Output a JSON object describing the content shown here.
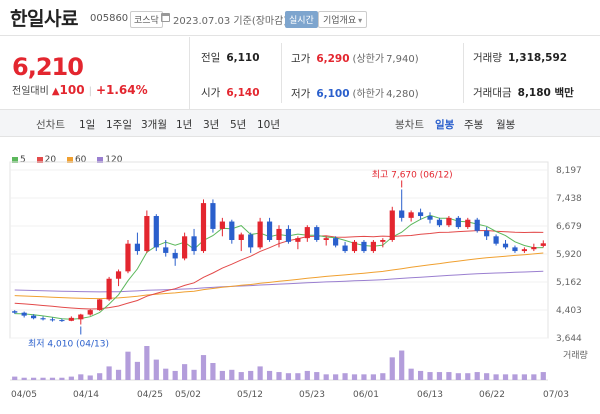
{
  "header": {
    "name": "한일사료",
    "code": "005860",
    "market": "코스닥",
    "date": "2023.07.03 기준(장마감)",
    "live_label": "실시간",
    "overview_label": "기업개요"
  },
  "price": {
    "current": "6,210",
    "change_label": "전일대비",
    "change": "100",
    "change_pct": "+1.64%"
  },
  "stats": {
    "prev_label": "전일",
    "prev": "6,110",
    "high_label": "고가",
    "high": "6,290",
    "upper_label": "(상한가",
    "upper": "7,940)",
    "volume_label": "거래량",
    "volume": "1,318,592",
    "open_label": "시가",
    "open": "6,140",
    "low_label": "저가",
    "low": "6,100",
    "lower_label": "(하한가",
    "lower": "4,280)",
    "amount_label": "거래대금",
    "amount": "8,180 백만"
  },
  "tabs": {
    "line_chart": "선차트",
    "periods": [
      "1일",
      "1주일",
      "3개월",
      "1년",
      "3년",
      "5년",
      "10년"
    ],
    "candle_chart": "봉차트",
    "candle_periods": [
      "일봉",
      "주봉",
      "월봉"
    ]
  },
  "colors": {
    "up": "#e3262f",
    "down": "#2a5fcc",
    "ma5": "#5cb85c",
    "ma20": "#e34a4a",
    "ma60": "#f0a030",
    "ma120": "#9a7fd0",
    "volume": "#b39ddb"
  },
  "chart_data": {
    "type": "candlestick",
    "legend": [
      "5",
      "20",
      "60",
      "120"
    ],
    "y_ticks": [
      "8,197",
      "7,438",
      "6,679",
      "5,920",
      "5,162",
      "4,403",
      "3,644"
    ],
    "ylim": [
      3644,
      8197
    ],
    "x_ticks": [
      "04/05",
      "04/14",
      "04/25",
      "05/02",
      "05/12",
      "05/23",
      "06/01",
      "06/13",
      "06/22",
      "07/03"
    ],
    "high_annotation": "최고 7,670 (06/12)",
    "low_annotation": "최저 4,010 (04/13)",
    "volume_label": "거래량",
    "candles": [
      [
        4370,
        4400,
        4300,
        4330
      ],
      [
        4330,
        4360,
        4200,
        4250
      ],
      [
        4250,
        4290,
        4150,
        4180
      ],
      [
        4180,
        4230,
        4120,
        4150
      ],
      [
        4150,
        4200,
        4090,
        4130
      ],
      [
        4130,
        4170,
        4080,
        4110
      ],
      [
        4110,
        4230,
        4100,
        4190
      ],
      [
        4150,
        4300,
        4010,
        4280
      ],
      [
        4280,
        4420,
        4250,
        4400
      ],
      [
        4400,
        4700,
        4380,
        4690
      ],
      [
        4690,
        5300,
        4650,
        5250
      ],
      [
        5250,
        5500,
        5050,
        5450
      ],
      [
        5450,
        6300,
        5400,
        6200
      ],
      [
        6200,
        6500,
        5900,
        6000
      ],
      [
        6000,
        7100,
        5950,
        6950
      ],
      [
        6950,
        7000,
        6000,
        6100
      ],
      [
        6100,
        6300,
        5850,
        5950
      ],
      [
        5950,
        6050,
        5600,
        5800
      ],
      [
        5800,
        6500,
        5750,
        6400
      ],
      [
        6400,
        6600,
        5900,
        6000
      ],
      [
        6000,
        7400,
        5950,
        7300
      ],
      [
        7300,
        7400,
        6500,
        6600
      ],
      [
        6600,
        6900,
        6400,
        6800
      ],
      [
        6800,
        6850,
        6200,
        6300
      ],
      [
        6300,
        6500,
        6000,
        6450
      ],
      [
        6450,
        6500,
        5950,
        6100
      ],
      [
        6100,
        6900,
        6050,
        6800
      ],
      [
        6800,
        6900,
        6250,
        6300
      ],
      [
        6300,
        6700,
        6100,
        6600
      ],
      [
        6600,
        6700,
        6200,
        6250
      ],
      [
        6250,
        6400,
        6050,
        6350
      ],
      [
        6350,
        6700,
        6250,
        6650
      ],
      [
        6650,
        6700,
        6250,
        6300
      ],
      [
        6300,
        6400,
        6150,
        6350
      ],
      [
        6350,
        6400,
        6100,
        6150
      ],
      [
        6150,
        6250,
        5950,
        6000
      ],
      [
        6000,
        6300,
        5950,
        6250
      ],
      [
        6250,
        6300,
        5950,
        6000
      ],
      [
        6000,
        6300,
        5950,
        6250
      ],
      [
        6250,
        6350,
        6100,
        6300
      ],
      [
        6300,
        7200,
        6250,
        7100
      ],
      [
        7100,
        7670,
        6800,
        6900
      ],
      [
        6900,
        7100,
        6800,
        7050
      ],
      [
        7050,
        7150,
        6850,
        6950
      ],
      [
        6950,
        7050,
        6750,
        6850
      ],
      [
        6850,
        6900,
        6650,
        6700
      ],
      [
        6700,
        6950,
        6650,
        6900
      ],
      [
        6900,
        6950,
        6600,
        6650
      ],
      [
        6650,
        6900,
        6600,
        6850
      ],
      [
        6850,
        6900,
        6500,
        6550
      ],
      [
        6550,
        6650,
        6300,
        6400
      ],
      [
        6400,
        6450,
        6150,
        6200
      ],
      [
        6200,
        6300,
        6050,
        6100
      ],
      [
        6100,
        6150,
        5950,
        6000
      ],
      [
        6000,
        6100,
        5950,
        6050
      ],
      [
        6050,
        6200,
        6000,
        6110
      ],
      [
        6140,
        6290,
        6100,
        6210
      ]
    ],
    "volumes": [
      3,
      2,
      2,
      2,
      2,
      2,
      3,
      5,
      4,
      6,
      12,
      9,
      25,
      16,
      30,
      18,
      10,
      8,
      14,
      9,
      22,
      15,
      8,
      9,
      7,
      8,
      12,
      8,
      7,
      6,
      6,
      8,
      7,
      5,
      5,
      6,
      5,
      5,
      5,
      6,
      20,
      26,
      10,
      8,
      7,
      7,
      7,
      6,
      6,
      7,
      6,
      5,
      5,
      5,
      5,
      5,
      7
    ]
  }
}
